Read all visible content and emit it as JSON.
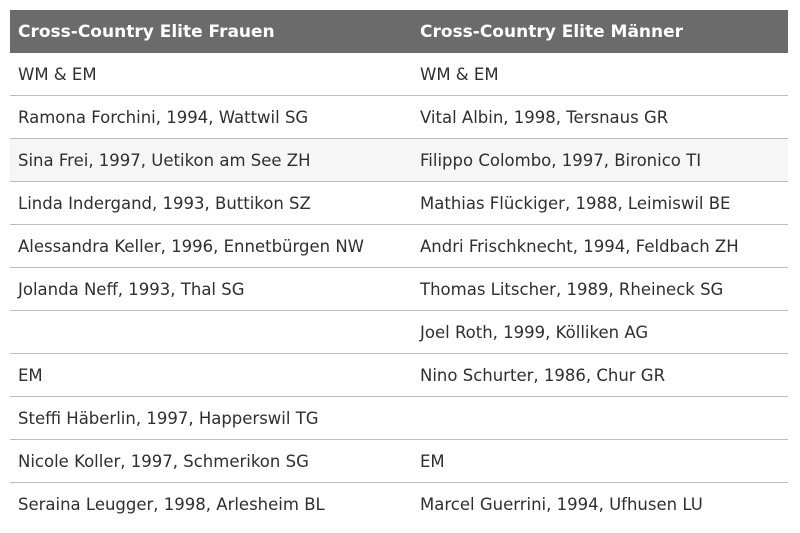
{
  "table": {
    "headers": [
      "Cross-Country Elite Frauen",
      "Cross-Country Elite Männer"
    ],
    "rows": [
      [
        "WM & EM",
        "WM & EM"
      ],
      [
        "Ramona Forchini, 1994, Wattwil SG",
        "Vital Albin, 1998, Tersnaus GR"
      ],
      [
        "Sina Frei, 1997, Uetikon am See ZH",
        "Filippo Colombo, 1997, Bironico TI"
      ],
      [
        "Linda Indergand, 1993, Buttikon SZ",
        "Mathias Flückiger, 1988, Leimiswil BE"
      ],
      [
        "Alessandra Keller, 1996, Ennetbürgen NW",
        "Andri Frischknecht, 1994, Feldbach ZH"
      ],
      [
        "Jolanda Neff, 1993, Thal SG",
        "Thomas Litscher, 1989, Rheineck SG"
      ],
      [
        "",
        "Joel Roth, 1999, Kölliken AG"
      ],
      [
        "EM",
        "Nino Schurter, 1986, Chur GR"
      ],
      [
        "Steffi Häberlin, 1997, Happerswil TG",
        ""
      ],
      [
        "Nicole Koller, 1997, Schmerikon SG",
        "EM"
      ],
      [
        "Seraina Leugger, 1998, Arlesheim BL",
        "Marcel Guerrini, 1994, Ufhusen LU"
      ]
    ]
  }
}
